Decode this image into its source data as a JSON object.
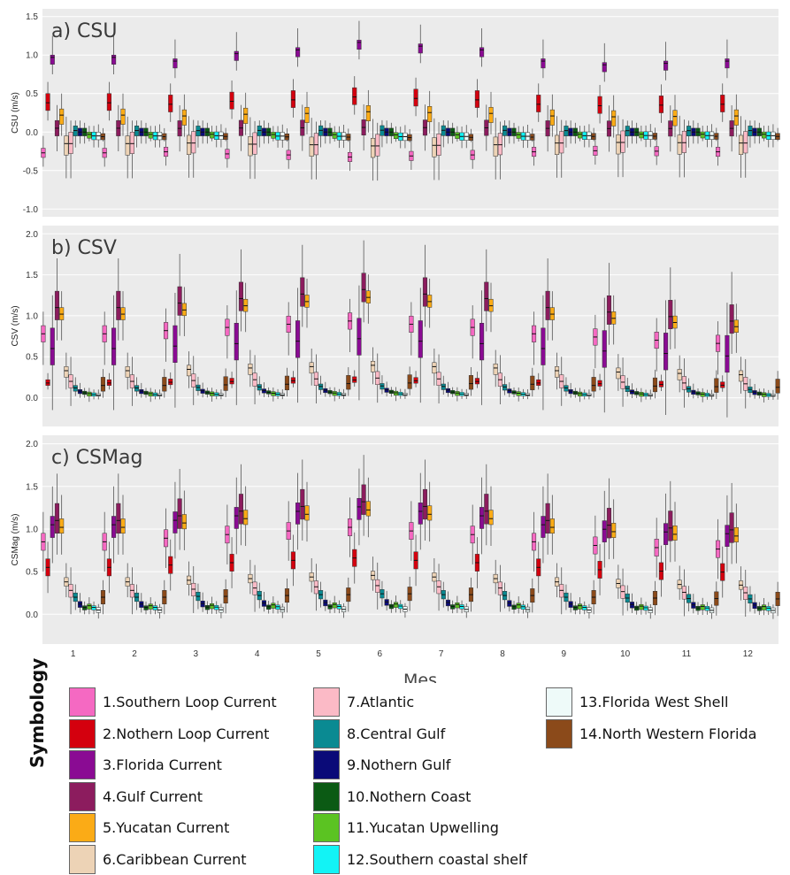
{
  "xlabel": "Mes",
  "chart_data": [
    {
      "type": "box",
      "title": "a) CSU",
      "ylabel": "CSU (m/s)",
      "ylim": [
        -1.1,
        1.6
      ],
      "yticks": [
        "-1.0",
        "-0.5",
        "0.0",
        "0.5",
        "1.0",
        "1.5"
      ],
      "yticks_values": [
        -1.0,
        -0.5,
        0.0,
        0.5,
        1.0,
        1.5
      ],
      "categories": [
        "1",
        "2",
        "3",
        "4",
        "5",
        "6",
        "7",
        "8",
        "9",
        "10",
        "11",
        "12"
      ],
      "typical_boxes": [
        [
          -0.45,
          -0.33,
          -0.27,
          -0.21,
          -0.05
        ],
        [
          0.15,
          0.28,
          0.38,
          0.5,
          0.65
        ],
        [
          0.75,
          0.88,
          0.97,
          1.0,
          1.25
        ],
        [
          -0.25,
          -0.05,
          0.05,
          0.15,
          0.35
        ],
        [
          -0.05,
          0.1,
          0.22,
          0.3,
          0.5
        ],
        [
          -0.6,
          -0.3,
          -0.15,
          -0.05,
          0.2
        ],
        [
          -0.6,
          -0.28,
          -0.15,
          0.0,
          0.15
        ],
        [
          -0.2,
          -0.05,
          0.02,
          0.08,
          0.15
        ],
        [
          -0.15,
          -0.05,
          0.0,
          0.05,
          0.15
        ],
        [
          -0.15,
          -0.05,
          0.0,
          0.05,
          0.12
        ],
        [
          -0.12,
          -0.08,
          -0.03,
          0.0,
          0.08
        ],
        [
          -0.2,
          -0.1,
          -0.05,
          0.0,
          0.08
        ],
        [
          -0.2,
          -0.1,
          -0.05,
          0.0,
          0.1
        ],
        [
          -0.12,
          -0.1,
          -0.06,
          -0.02,
          0.05
        ]
      ],
      "month_scale": [
        1.0,
        1.0,
        0.95,
        1.05,
        1.1,
        1.2,
        1.15,
        1.1,
        0.95,
        0.9,
        0.92,
        0.95
      ]
    },
    {
      "type": "box",
      "title": "b) CSV",
      "ylabel": "CSV (m/s)",
      "ylim": [
        -0.35,
        2.1
      ],
      "yticks": [
        "0.0",
        "0.5",
        "1.0",
        "1.5",
        "2.0"
      ],
      "yticks_values": [
        0.0,
        0.5,
        1.0,
        1.5,
        2.0
      ],
      "categories": [
        "1",
        "2",
        "3",
        "4",
        "5",
        "6",
        "7",
        "8",
        "9",
        "10",
        "11",
        "12"
      ],
      "typical_boxes": [
        [
          0.4,
          0.68,
          0.78,
          0.88,
          1.05
        ],
        [
          0.1,
          0.15,
          0.18,
          0.22,
          0.3
        ],
        [
          -0.15,
          0.4,
          0.6,
          0.85,
          1.25
        ],
        [
          0.7,
          0.95,
          1.1,
          1.3,
          1.7
        ],
        [
          0.7,
          0.95,
          1.02,
          1.1,
          1.3
        ],
        [
          0.1,
          0.25,
          0.33,
          0.38,
          0.55
        ],
        [
          -0.1,
          0.12,
          0.2,
          0.28,
          0.5
        ],
        [
          0.02,
          0.08,
          0.12,
          0.15,
          0.25
        ],
        [
          0.0,
          0.05,
          0.08,
          0.1,
          0.18
        ],
        [
          0.0,
          0.04,
          0.06,
          0.08,
          0.12
        ],
        [
          -0.05,
          0.02,
          0.05,
          0.07,
          0.12
        ],
        [
          -0.02,
          0.02,
          0.04,
          0.06,
          0.1
        ],
        [
          -0.02,
          0.02,
          0.03,
          0.05,
          0.1
        ],
        [
          0.0,
          0.08,
          0.15,
          0.25,
          0.35
        ]
      ],
      "month_scale": [
        1.0,
        1.0,
        1.05,
        1.1,
        1.15,
        1.2,
        1.15,
        1.1,
        1.0,
        0.95,
        0.9,
        0.85
      ]
    },
    {
      "type": "box",
      "title": "c) CSMag",
      "ylabel": "CSMag (m/s)",
      "ylim": [
        -0.35,
        2.1
      ],
      "yticks": [
        "0.0",
        "0.5",
        "1.0",
        "1.5",
        "2.0"
      ],
      "yticks_values": [
        0.0,
        0.5,
        1.0,
        1.5,
        2.0
      ],
      "categories": [
        "1",
        "2",
        "3",
        "4",
        "5",
        "6",
        "7",
        "8",
        "9",
        "10",
        "11",
        "12"
      ],
      "typical_boxes": [
        [
          0.5,
          0.75,
          0.85,
          0.95,
          1.2
        ],
        [
          0.25,
          0.45,
          0.55,
          0.65,
          0.85
        ],
        [
          0.6,
          0.9,
          1.05,
          1.15,
          1.5
        ],
        [
          0.7,
          0.95,
          1.1,
          1.3,
          1.65
        ],
        [
          0.7,
          0.95,
          1.02,
          1.12,
          1.4
        ],
        [
          0.2,
          0.33,
          0.38,
          0.43,
          0.6
        ],
        [
          0.0,
          0.2,
          0.28,
          0.35,
          0.55
        ],
        [
          0.05,
          0.15,
          0.2,
          0.25,
          0.35
        ],
        [
          0.02,
          0.08,
          0.12,
          0.15,
          0.25
        ],
        [
          0.0,
          0.05,
          0.08,
          0.1,
          0.15
        ],
        [
          0.0,
          0.06,
          0.1,
          0.12,
          0.2
        ],
        [
          0.0,
          0.05,
          0.08,
          0.1,
          0.15
        ],
        [
          -0.05,
          0.02,
          0.05,
          0.08,
          0.12
        ],
        [
          0.0,
          0.12,
          0.2,
          0.28,
          0.4
        ]
      ],
      "month_scale": [
        1.0,
        1.0,
        1.05,
        1.1,
        1.15,
        1.2,
        1.15,
        1.1,
        1.0,
        0.95,
        0.92,
        0.9
      ]
    }
  ],
  "legend": {
    "title": "Symbology",
    "items": [
      {
        "label": "1.Southern Loop Current",
        "color": "#F569C2"
      },
      {
        "label": "2.Nothern Loop Current",
        "color": "#D4000E"
      },
      {
        "label": "3.Florida Current",
        "color": "#8A0B93"
      },
      {
        "label": "4.Gulf Current",
        "color": "#8C1C5E"
      },
      {
        "label": "5.Yucatan Current",
        "color": "#FBAB16"
      },
      {
        "label": "6.Caribbean Current",
        "color": "#EDD3B6"
      },
      {
        "label": "7.Atlantic",
        "color": "#FBBAC6"
      },
      {
        "label": "8.Central Gulf",
        "color": "#0A8A92"
      },
      {
        "label": "9.Nothern Gulf",
        "color": "#0A0A78"
      },
      {
        "label": "10.Nothern Coast",
        "color": "#0B5A14"
      },
      {
        "label": "11.Yucatan Upwelling",
        "color": "#5BC322"
      },
      {
        "label": "12.Southern coastal shelf",
        "color": "#12F3F5"
      },
      {
        "label": "13.Florida West Shell",
        "color": "#EEFAF9"
      },
      {
        "label": "14.North Western Florida",
        "color": "#8B4A1A"
      }
    ]
  }
}
